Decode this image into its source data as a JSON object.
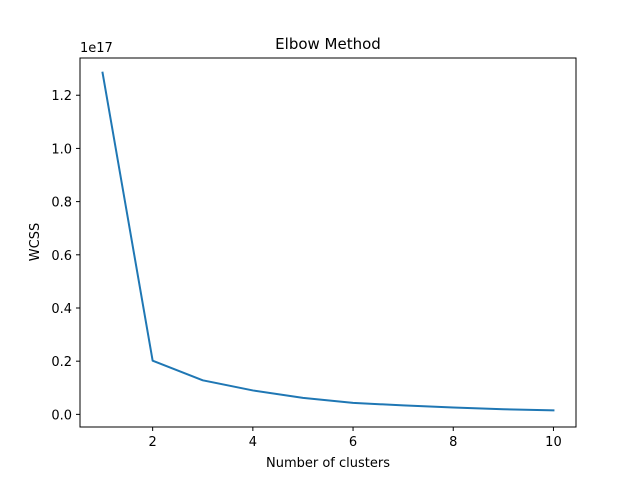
{
  "chart_data": {
    "type": "line",
    "title": "Elbow Method",
    "xlabel": "Number of clusters",
    "ylabel": "WCSS",
    "offset_label": "1e17",
    "x_ticks": [
      "2",
      "4",
      "6",
      "8",
      "10"
    ],
    "y_ticks": [
      "0.0",
      "0.2",
      "0.4",
      "0.6",
      "0.8",
      "1.0",
      "1.2"
    ],
    "xlim": [
      0.55,
      10.45
    ],
    "ylim": [
      -0.0475,
      1.34
    ],
    "grid": false,
    "series": [
      {
        "x": [
          1,
          2,
          3,
          4,
          5,
          6,
          7,
          8,
          9,
          10
        ],
        "values": [
          1.285,
          0.202,
          0.128,
          0.09,
          0.062,
          0.043,
          0.034,
          0.026,
          0.019,
          0.015
        ],
        "color": "#1f77b4"
      }
    ]
  }
}
